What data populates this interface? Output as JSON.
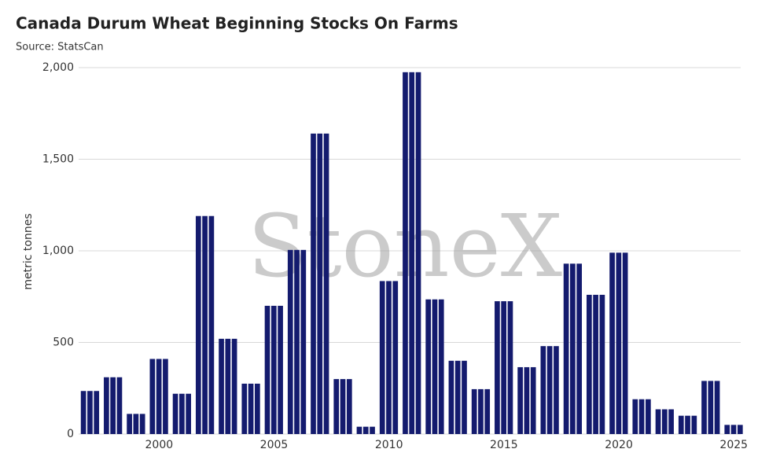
{
  "chart_data": {
    "type": "bar",
    "title": "Canada Durum Wheat Beginning Stocks On Farms",
    "subtitle": "Source: StatsCan",
    "y_label": "metric tonnes",
    "watermark": "StoneX",
    "color": "#141b6e",
    "grid": true,
    "x": [
      1997,
      1998,
      1999,
      2000,
      2001,
      2002,
      2003,
      2004,
      2005,
      2006,
      2007,
      2008,
      2009,
      2010,
      2011,
      2012,
      2013,
      2014,
      2015,
      2016,
      2017,
      2018,
      2019,
      2020,
      2021,
      2022,
      2023,
      2024,
      2025
    ],
    "values": [
      235,
      310,
      110,
      410,
      220,
      1190,
      520,
      275,
      700,
      1005,
      1640,
      300,
      40,
      835,
      1975,
      735,
      400,
      245,
      725,
      365,
      480,
      930,
      760,
      990,
      190,
      135,
      100,
      290,
      50
    ],
    "xlim": [
      1996.5,
      2025.3
    ],
    "xticks": [
      2000,
      2005,
      2010,
      2015,
      2020,
      2025
    ],
    "ylim": [
      0,
      2000
    ],
    "yticks": [
      0,
      500,
      {
        "value": 1000,
        "label": "1,000"
      },
      {
        "value": 1500,
        "label": "1,500"
      },
      {
        "value": 2000,
        "label": "2,000"
      }
    ]
  }
}
